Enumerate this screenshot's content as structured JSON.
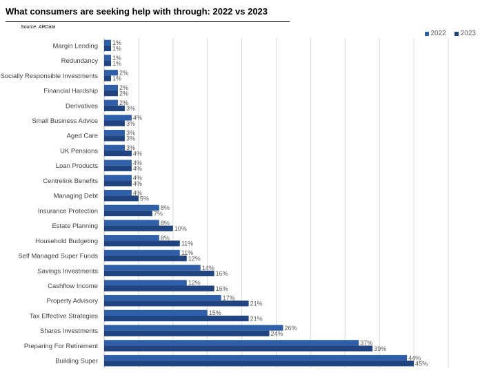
{
  "header": {
    "title": "What consumers are seeking help with through: 2022 vs 2023",
    "source": "Source: ARData"
  },
  "colors": {
    "2022": "#2e5fa8",
    "2023": "#1f4480",
    "grid": "#d9d9d9",
    "axis": "#bfbfbf"
  },
  "chart_data": {
    "type": "bar",
    "orientation": "horizontal",
    "title": "What consumers are seeking help with through: 2022 vs 2023",
    "categories": [
      "Margin Lending",
      "Redundancy",
      "Socially Responsible Investments",
      "Financial Hardship",
      "Derivatives",
      "Small Business Advice",
      "Aged Care",
      "UK Pensions",
      "Loan Products",
      "Centrelink Benefits",
      "Managing Debt",
      "Insurance Protection",
      "Estate Planning",
      "Household Budgeting",
      "Self Managed Super Funds",
      "Savings Investments",
      "Cashflow Income",
      "Property Advisory",
      "Tax Effective Strategies",
      "Shares Investments",
      "Preparing For Retirement",
      "Building Super"
    ],
    "series": [
      {
        "name": "2022",
        "values": [
          1,
          1,
          2,
          2,
          2,
          4,
          3,
          3,
          4,
          4,
          4,
          8,
          8,
          8,
          11,
          14,
          12,
          17,
          15,
          26,
          37,
          44
        ]
      },
      {
        "name": "2023",
        "values": [
          1,
          1,
          1,
          2,
          3,
          3,
          3,
          4,
          4,
          4,
          5,
          7,
          10,
          11,
          12,
          16,
          16,
          21,
          21,
          24,
          39,
          45
        ]
      }
    ],
    "value_labels": {
      "2022": [
        "1%",
        "1%",
        "2%",
        "2%",
        "2%",
        "4%",
        "3%",
        "3%",
        "4%",
        "4%",
        "4%",
        "8%",
        "8%",
        "8%",
        "11%",
        "14%",
        "12%",
        "17%",
        "15%",
        "26%",
        "37%",
        "44%"
      ],
      "2023": [
        "1%",
        "1%",
        "1%",
        "2%",
        "3%",
        "3%",
        "3%",
        "4%",
        "4%",
        "4%",
        "5%",
        "7%",
        "10%",
        "11%",
        "12%",
        "16%",
        "16%",
        "21%",
        "21%",
        "24%",
        "39%",
        "45%"
      ]
    },
    "xlim": [
      0,
      50
    ],
    "grid": true,
    "legend_position": "top-right"
  }
}
